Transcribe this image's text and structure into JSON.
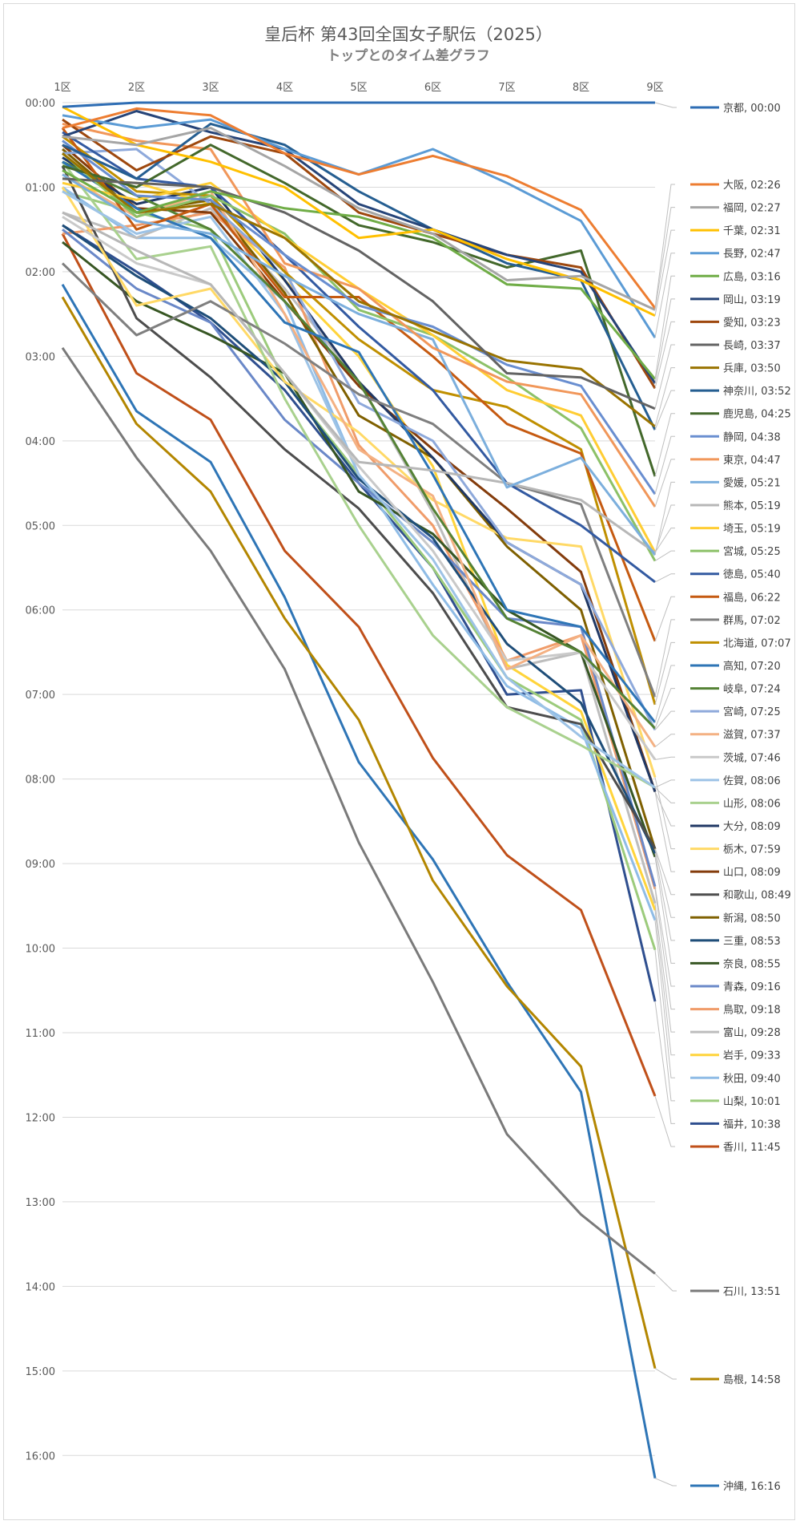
{
  "chart_data": {
    "type": "line",
    "title": "皇后杯 第43回全国女子駅伝（2025）",
    "subtitle": "トップとのタイム差グラフ",
    "categories": [
      "1区",
      "2区",
      "3区",
      "4区",
      "5区",
      "6区",
      "7区",
      "8区",
      "9区"
    ],
    "y_tick_labels": [
      "00:00",
      "01:00",
      "02:00",
      "03:00",
      "04:00",
      "05:00",
      "06:00",
      "07:00",
      "08:00",
      "09:00",
      "10:00",
      "11:00",
      "12:00",
      "13:00",
      "14:00",
      "15:00",
      "16:00"
    ],
    "y_unit": "minutes behind leader",
    "ylim": [
      0,
      16.5
    ],
    "y_inverted": true,
    "x_axis_position": "top",
    "grid": true,
    "legend_position": "right",
    "series": [
      {
        "name": "京都, 00:00",
        "color": "#2E6DB4",
        "values": [
          0.05,
          0.0,
          0.0,
          0.0,
          0.0,
          0.0,
          0.0,
          0.0,
          0.0
        ]
      },
      {
        "name": "大阪, 02:26",
        "color": "#ED7D31",
        "values": [
          0.3,
          0.07,
          0.15,
          0.6,
          0.85,
          0.63,
          0.87,
          1.27,
          2.43
        ]
      },
      {
        "name": "福岡, 02:27",
        "color": "#A5A5A5",
        "values": [
          0.4,
          0.5,
          0.3,
          0.75,
          1.25,
          1.55,
          2.1,
          2.05,
          2.45
        ]
      },
      {
        "name": "千葉, 02:31",
        "color": "#FFC000",
        "values": [
          0.05,
          0.5,
          0.7,
          1.0,
          1.6,
          1.5,
          1.85,
          2.1,
          2.52
        ]
      },
      {
        "name": "長野, 02:47",
        "color": "#5B9BD5",
        "values": [
          0.15,
          0.3,
          0.2,
          0.55,
          0.85,
          0.55,
          0.95,
          1.4,
          2.78
        ]
      },
      {
        "name": "広島, 03:16",
        "color": "#70AD47",
        "values": [
          0.8,
          1.3,
          1.05,
          1.25,
          1.35,
          1.6,
          2.15,
          2.2,
          3.27
        ]
      },
      {
        "name": "岡山, 03:19",
        "color": "#264478",
        "values": [
          0.4,
          0.1,
          0.35,
          0.55,
          1.2,
          1.5,
          1.8,
          2.0,
          3.32
        ]
      },
      {
        "name": "愛知, 03:23",
        "color": "#9E480E",
        "values": [
          0.2,
          0.8,
          0.4,
          0.6,
          1.3,
          1.55,
          1.8,
          1.95,
          3.38
        ]
      },
      {
        "name": "長崎, 03:37",
        "color": "#636363",
        "values": [
          0.9,
          0.95,
          1.0,
          1.3,
          1.75,
          2.35,
          3.2,
          3.25,
          3.62
        ]
      },
      {
        "name": "兵庫, 03:50",
        "color": "#997300",
        "values": [
          0.6,
          1.3,
          1.2,
          1.6,
          2.35,
          2.7,
          3.05,
          3.15,
          3.83
        ]
      },
      {
        "name": "神奈川, 03:52",
        "color": "#255E91",
        "values": [
          0.5,
          0.9,
          0.25,
          0.5,
          1.05,
          1.5,
          1.9,
          2.1,
          3.87
        ]
      },
      {
        "name": "鹿児島, 04:25",
        "color": "#43682B",
        "values": [
          0.75,
          1.0,
          0.5,
          0.95,
          1.45,
          1.65,
          1.95,
          1.75,
          4.42
        ]
      },
      {
        "name": "静岡, 04:38",
        "color": "#698ED0",
        "values": [
          0.45,
          1.1,
          1.15,
          1.8,
          2.4,
          2.65,
          3.1,
          3.35,
          4.63
        ]
      },
      {
        "name": "東京, 04:47",
        "color": "#F1975A",
        "values": [
          0.25,
          0.45,
          0.55,
          1.9,
          2.2,
          2.9,
          3.3,
          3.45,
          4.78
        ]
      },
      {
        "name": "愛媛, 05:21",
        "color": "#7CAFDD",
        "values": [
          0.85,
          1.4,
          1.55,
          2.05,
          2.5,
          2.8,
          4.55,
          4.2,
          5.35
        ]
      },
      {
        "name": "熊本, 05:19",
        "color": "#B7B7B7",
        "values": [
          1.3,
          1.75,
          2.15,
          3.2,
          4.25,
          4.35,
          4.5,
          4.7,
          5.32
        ]
      },
      {
        "name": "埼玉, 05:19",
        "color": "#FFCD33",
        "values": [
          0.95,
          1.15,
          0.95,
          1.6,
          2.2,
          2.75,
          3.4,
          3.7,
          5.32
        ]
      },
      {
        "name": "宮城, 05:25",
        "color": "#8CC168",
        "values": [
          0.6,
          1.35,
          1.1,
          1.55,
          2.45,
          2.75,
          3.25,
          3.85,
          5.42
        ]
      },
      {
        "name": "徳島, 05:40",
        "color": "#335AA1",
        "values": [
          0.35,
          0.9,
          1.0,
          1.8,
          2.65,
          3.4,
          4.5,
          5.0,
          5.67
        ]
      },
      {
        "name": "福島, 06:22",
        "color": "#C55A11",
        "values": [
          0.3,
          1.5,
          1.2,
          2.3,
          2.3,
          3.0,
          3.8,
          4.15,
          6.37
        ]
      },
      {
        "name": "群馬, 07:02",
        "color": "#7F7F7F",
        "values": [
          1.9,
          2.75,
          2.35,
          2.85,
          3.45,
          3.8,
          4.5,
          4.75,
          7.03
        ]
      },
      {
        "name": "北海道, 07:07",
        "color": "#BF8F00",
        "values": [
          0.4,
          1.05,
          1.1,
          2.0,
          2.8,
          3.4,
          3.6,
          4.1,
          7.12
        ]
      },
      {
        "name": "高知, 07:20",
        "color": "#2E75B6",
        "values": [
          0.7,
          1.25,
          1.6,
          2.6,
          2.95,
          4.4,
          6.0,
          6.2,
          7.33
        ]
      },
      {
        "name": "岐阜, 07:24",
        "color": "#548235",
        "values": [
          0.7,
          1.1,
          1.5,
          2.35,
          3.3,
          4.8,
          6.1,
          6.5,
          7.4
        ]
      },
      {
        "name": "宮崎, 07:25",
        "color": "#8EA9DB",
        "values": [
          0.6,
          0.55,
          1.2,
          2.0,
          3.55,
          4.0,
          5.2,
          5.7,
          7.42
        ]
      },
      {
        "name": "滋賀, 07:37",
        "color": "#F4B183",
        "values": [
          0.85,
          1.35,
          1.05,
          2.5,
          4.1,
          4.65,
          6.7,
          6.3,
          7.62
        ]
      },
      {
        "name": "茨城, 07:46",
        "color": "#C9C9C9",
        "values": [
          1.35,
          1.9,
          2.15,
          3.2,
          4.3,
          5.3,
          6.6,
          6.5,
          7.77
        ]
      },
      {
        "name": "佐賀, 08:06",
        "color": "#9DC3E6",
        "values": [
          1.05,
          1.55,
          1.35,
          2.5,
          4.4,
          5.4,
          6.8,
          7.5,
          8.1
        ]
      },
      {
        "name": "山形, 08:06",
        "color": "#A9D18E",
        "values": [
          0.7,
          1.85,
          1.7,
          3.5,
          5.0,
          6.3,
          7.15,
          7.6,
          8.1
        ]
      },
      {
        "name": "大分, 08:09",
        "color": "#203864",
        "values": [
          0.65,
          1.2,
          1.0,
          2.1,
          3.3,
          4.2,
          5.2,
          5.7,
          8.15
        ]
      },
      {
        "name": "栃木, 07:59",
        "color": "#FFD966",
        "values": [
          1.0,
          2.4,
          2.2,
          3.3,
          3.9,
          4.7,
          5.15,
          5.25,
          7.98
        ]
      },
      {
        "name": "山口, 08:09",
        "color": "#843C0C",
        "values": [
          0.5,
          1.25,
          1.3,
          2.35,
          3.35,
          4.1,
          4.8,
          5.55,
          8.15
        ]
      },
      {
        "name": "和歌山, 08:49",
        "color": "#4D4D4D",
        "values": [
          0.75,
          2.55,
          3.25,
          4.1,
          4.8,
          5.8,
          7.15,
          7.35,
          8.82
        ]
      },
      {
        "name": "新潟, 08:50",
        "color": "#7F6000",
        "values": [
          0.55,
          1.3,
          1.15,
          2.25,
          3.7,
          4.2,
          5.25,
          6.0,
          8.83
        ]
      },
      {
        "name": "三重, 08:53",
        "color": "#1F4E79",
        "values": [
          1.45,
          2.05,
          2.55,
          3.3,
          4.45,
          5.15,
          6.4,
          7.1,
          8.88
        ]
      },
      {
        "name": "奈良, 08:55",
        "color": "#375623",
        "values": [
          1.65,
          2.35,
          2.75,
          3.2,
          4.6,
          5.1,
          6.0,
          6.5,
          8.92
        ]
      },
      {
        "name": "青森, 09:16",
        "color": "#6A88C8",
        "values": [
          1.5,
          2.2,
          2.6,
          3.75,
          4.5,
          5.2,
          6.1,
          6.2,
          9.27
        ]
      },
      {
        "name": "鳥取, 09:18",
        "color": "#F09C6A",
        "values": [
          1.55,
          1.45,
          1.3,
          1.95,
          4.05,
          5.0,
          6.6,
          6.3,
          9.3
        ]
      },
      {
        "name": "富山, 09:28",
        "color": "#BDBDBD",
        "values": [
          1.3,
          1.6,
          1.25,
          2.2,
          3.3,
          4.85,
          6.7,
          6.5,
          9.47
        ]
      },
      {
        "name": "岩手, 09:33",
        "color": "#FFD43B",
        "values": [
          0.9,
          0.95,
          1.2,
          2.1,
          3.0,
          4.3,
          6.65,
          7.2,
          9.55
        ]
      },
      {
        "name": "秋田, 09:40",
        "color": "#8FBCE6",
        "values": [
          1.0,
          1.6,
          1.6,
          2.35,
          4.4,
          5.7,
          6.9,
          7.4,
          9.67
        ]
      },
      {
        "name": "山梨, 10:01",
        "color": "#9CCB7C",
        "values": [
          1.05,
          1.3,
          1.5,
          3.3,
          4.4,
          5.5,
          6.8,
          7.3,
          10.02
        ]
      },
      {
        "name": "福井, 10:38",
        "color": "#2F4F8F",
        "values": [
          1.45,
          2.0,
          2.6,
          3.4,
          4.5,
          5.5,
          7.0,
          6.95,
          10.63
        ]
      },
      {
        "name": "香川, 11:45",
        "color": "#C0501A",
        "values": [
          1.55,
          3.2,
          3.75,
          5.3,
          6.2,
          7.75,
          8.9,
          9.55,
          11.75
        ]
      },
      {
        "name": "石川, 13:51",
        "color": "#7A7A7A",
        "values": [
          2.9,
          4.2,
          5.3,
          6.7,
          8.75,
          10.4,
          12.2,
          13.15,
          13.85
        ]
      },
      {
        "name": "島根, 14:58",
        "color": "#B38600",
        "values": [
          2.3,
          3.8,
          4.6,
          6.1,
          7.3,
          9.2,
          10.45,
          11.4,
          14.97
        ]
      },
      {
        "name": "沖縄, 16:16",
        "color": "#2E75B6",
        "values": [
          2.15,
          3.65,
          4.25,
          5.85,
          7.8,
          8.95,
          10.4,
          11.7,
          16.27
        ]
      }
    ]
  }
}
